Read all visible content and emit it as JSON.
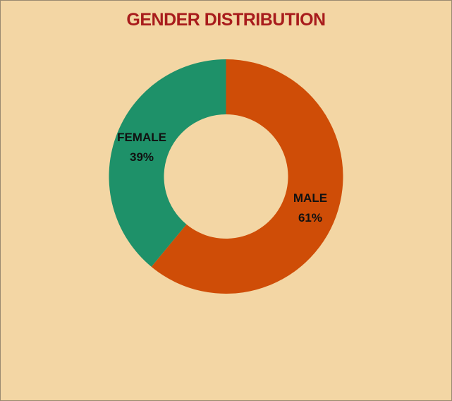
{
  "colors": {
    "background": "#f3d6a4",
    "title": "#a81c1c",
    "male": "#cf4d07",
    "female": "#1e9169"
  },
  "chart_data": {
    "type": "pie",
    "variant": "donut",
    "title": "GENDER DISTRIBUTION",
    "categories": [
      "MALE",
      "FEMALE"
    ],
    "values": [
      61,
      39
    ],
    "value_labels": [
      "61%",
      "39%"
    ],
    "legend": "none",
    "start": "top",
    "direction": "clockwise"
  }
}
